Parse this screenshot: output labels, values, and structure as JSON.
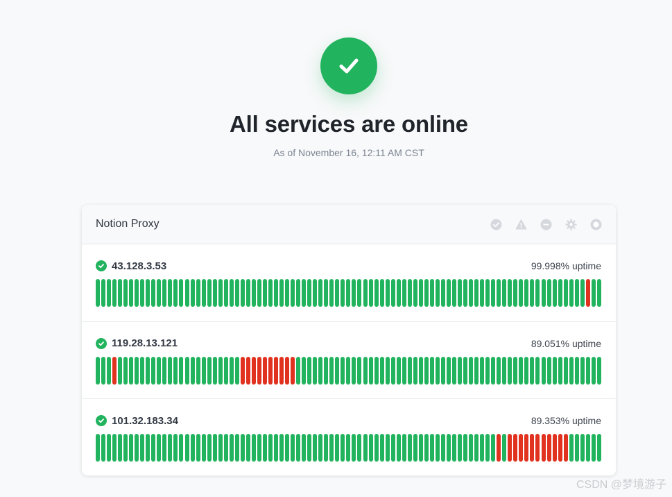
{
  "hero": {
    "title": "All services are online",
    "subtitle": "As of November 16, 12:11 AM CST",
    "icon": "check-icon"
  },
  "colors": {
    "up": "#22b35e",
    "down": "#e0321f",
    "icon_muted": "#d5d8dd"
  },
  "group": {
    "title": "Notion Proxy",
    "filters": [
      "check-circle-icon",
      "warning-icon",
      "minus-circle-icon",
      "gear-icon",
      "circle-icon"
    ]
  },
  "monitors": [
    {
      "name": "43.128.3.53",
      "uptime": "99.998% uptime",
      "days": [
        1,
        1,
        1,
        1,
        1,
        1,
        1,
        1,
        1,
        1,
        1,
        1,
        1,
        1,
        1,
        1,
        1,
        1,
        1,
        1,
        1,
        1,
        1,
        1,
        1,
        1,
        1,
        1,
        1,
        1,
        1,
        1,
        1,
        1,
        1,
        1,
        1,
        1,
        1,
        1,
        1,
        1,
        1,
        1,
        1,
        1,
        1,
        1,
        1,
        1,
        1,
        1,
        1,
        1,
        1,
        1,
        1,
        1,
        1,
        1,
        1,
        1,
        1,
        1,
        1,
        1,
        1,
        1,
        1,
        1,
        1,
        1,
        1,
        1,
        1,
        1,
        1,
        1,
        1,
        1,
        1,
        1,
        1,
        1,
        1,
        1,
        1,
        1,
        0,
        1,
        1
      ]
    },
    {
      "name": "119.28.13.121",
      "uptime": "89.051% uptime",
      "days": [
        1,
        1,
        1,
        0,
        1,
        1,
        1,
        1,
        1,
        1,
        1,
        1,
        1,
        1,
        1,
        1,
        1,
        1,
        1,
        1,
        1,
        1,
        1,
        1,
        1,
        1,
        0,
        0,
        0,
        0,
        0,
        0,
        0,
        0,
        0,
        0,
        1,
        1,
        1,
        1,
        1,
        1,
        1,
        1,
        1,
        1,
        1,
        1,
        1,
        1,
        1,
        1,
        1,
        1,
        1,
        1,
        1,
        1,
        1,
        1,
        1,
        1,
        1,
        1,
        1,
        1,
        1,
        1,
        1,
        1,
        1,
        1,
        1,
        1,
        1,
        1,
        1,
        1,
        1,
        1,
        1,
        1,
        1,
        1,
        1,
        1,
        1,
        1,
        1,
        1,
        1
      ]
    },
    {
      "name": "101.32.183.34",
      "uptime": "89.353% uptime",
      "days": [
        1,
        1,
        1,
        1,
        1,
        1,
        1,
        1,
        1,
        1,
        1,
        1,
        1,
        1,
        1,
        1,
        1,
        1,
        1,
        1,
        1,
        1,
        1,
        1,
        1,
        1,
        1,
        1,
        1,
        1,
        1,
        1,
        1,
        1,
        1,
        1,
        1,
        1,
        1,
        1,
        1,
        1,
        1,
        1,
        1,
        1,
        1,
        1,
        1,
        1,
        1,
        1,
        1,
        1,
        1,
        1,
        1,
        1,
        1,
        1,
        1,
        1,
        1,
        1,
        1,
        1,
        1,
        1,
        1,
        1,
        1,
        1,
        0,
        1,
        0,
        0,
        0,
        0,
        0,
        0,
        0,
        0,
        0,
        0,
        0,
        1,
        1,
        1,
        1,
        1,
        1
      ]
    }
  ],
  "watermark": "CSDN @梦境游子"
}
